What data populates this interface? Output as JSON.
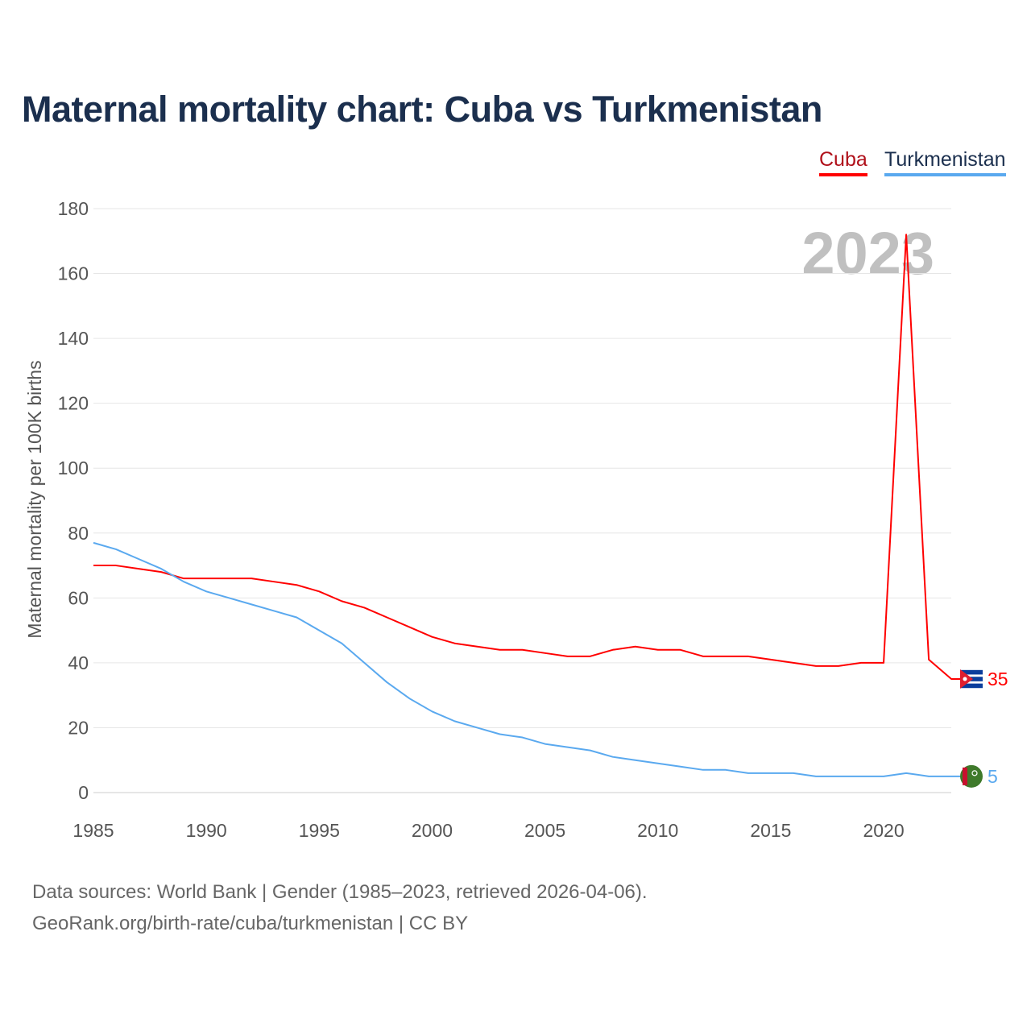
{
  "title": "Maternal mortality chart: Cuba vs Turkmenistan",
  "footer": {
    "line1": "Data sources: World Bank | Gender (1985–2023, retrieved 2026-04-06).",
    "line2": "GeoRank.org/birth-rate/cuba/turkmenistan | CC BY"
  },
  "chart_data": {
    "type": "line",
    "title": "Maternal mortality chart: Cuba vs Turkmenistan",
    "ylabel": "Maternal mortality per 100K births",
    "xlabel": "",
    "year_label": "2023",
    "xlim": [
      1985,
      2023
    ],
    "ylim": [
      0,
      180
    ],
    "xticks": [
      1985,
      1990,
      1995,
      2000,
      2005,
      2010,
      2015,
      2020
    ],
    "yticks": [
      0,
      20,
      40,
      60,
      80,
      100,
      120,
      140,
      160,
      180
    ],
    "grid": true,
    "legend_position": "top-right",
    "x": [
      1985,
      1986,
      1987,
      1988,
      1989,
      1990,
      1991,
      1992,
      1993,
      1994,
      1995,
      1996,
      1997,
      1998,
      1999,
      2000,
      2001,
      2002,
      2003,
      2004,
      2005,
      2006,
      2007,
      2008,
      2009,
      2010,
      2011,
      2012,
      2013,
      2014,
      2015,
      2016,
      2017,
      2018,
      2019,
      2020,
      2021,
      2022,
      2023
    ],
    "series": [
      {
        "name": "Cuba",
        "color": "#ff0000",
        "end_label": "35",
        "values": [
          70,
          70,
          69,
          68,
          66,
          66,
          66,
          66,
          65,
          64,
          62,
          59,
          57,
          54,
          51,
          48,
          46,
          45,
          44,
          44,
          43,
          42,
          42,
          44,
          45,
          44,
          44,
          42,
          42,
          42,
          41,
          40,
          39,
          39,
          40,
          40,
          172,
          41,
          35
        ]
      },
      {
        "name": "Turkmenistan",
        "color": "#5aa9ef",
        "end_label": "5",
        "values": [
          77,
          75,
          72,
          69,
          65,
          62,
          60,
          58,
          56,
          54,
          50,
          46,
          40,
          34,
          29,
          25,
          22,
          20,
          18,
          17,
          15,
          14,
          13,
          11,
          10,
          9,
          8,
          7,
          7,
          6,
          6,
          6,
          5,
          5,
          5,
          5,
          6,
          5,
          5
        ]
      }
    ]
  }
}
